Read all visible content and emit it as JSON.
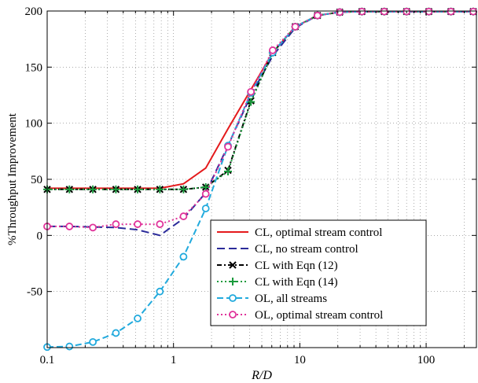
{
  "chart_data": {
    "type": "line",
    "xscale": "log",
    "xlim": [
      0.1,
      250
    ],
    "ylim": [
      -100,
      200
    ],
    "xlabel": "R/D",
    "ylabel": "%Throughput Improvement",
    "xticks": [
      0.1,
      1,
      10,
      100
    ],
    "xtick_labels": [
      "0.1",
      "1",
      "10",
      "100"
    ],
    "yticks": [
      -100,
      -50,
      0,
      50,
      100,
      150,
      200
    ],
    "ytick_labels": [
      "",
      "-50",
      "0",
      "50",
      "100",
      "150",
      "200"
    ],
    "grid": true,
    "legend_position": "lower-right",
    "x": [
      0.1,
      0.15,
      0.23,
      0.35,
      0.52,
      0.78,
      1.2,
      1.8,
      2.7,
      4.1,
      6.1,
      9.2,
      13.8,
      20.7,
      31,
      46.6,
      70,
      105,
      157,
      236
    ],
    "series": [
      {
        "name": "CL, optimal stream control",
        "color": "#e41a1c",
        "dash": "",
        "marker": "none",
        "values": [
          42,
          42,
          42,
          42,
          42,
          42,
          46,
          60,
          95,
          130,
          163,
          186,
          196,
          199,
          199.5,
          199.5,
          199.5,
          199.5,
          199.5,
          199.5
        ]
      },
      {
        "name": "CL, no stream control",
        "color": "#2b2b9a",
        "dash": "10,5",
        "marker": "none",
        "values": [
          8,
          8,
          7.5,
          7,
          5,
          0,
          15,
          38,
          80,
          125,
          160,
          185,
          196,
          199,
          199.5,
          199.5,
          199.5,
          199.5,
          199.5,
          199.5
        ]
      },
      {
        "name": "CL with Eqn (12)",
        "color": "#000000",
        "dash": "6,3,2,3",
        "marker": "x",
        "values": [
          41,
          41,
          41,
          41,
          41,
          41,
          41,
          43,
          58,
          120,
          163,
          186,
          196,
          199,
          199.5,
          199.5,
          199.5,
          199.5,
          199.5,
          199.5
        ]
      },
      {
        "name": "CL with Eqn (14)",
        "color": "#1a9a3c",
        "dash": "2,3",
        "marker": "+",
        "values": [
          41,
          41,
          41,
          41,
          41,
          41,
          41,
          43,
          57,
          119,
          163,
          186,
          196,
          199,
          199.5,
          199.5,
          199.5,
          199.5,
          199.5,
          199.5
        ]
      },
      {
        "name": "OL, all streams",
        "color": "#22aadd",
        "dash": "8,4",
        "marker": "o",
        "values": [
          -99.5,
          -99,
          -95,
          -87,
          -74,
          -50,
          -19,
          24,
          80,
          127,
          163,
          186,
          196,
          199,
          199.5,
          199.5,
          199.5,
          199.5,
          199.5,
          199.5
        ]
      },
      {
        "name": "OL, optimal stream control",
        "color": "#e0339a",
        "dash": "2,3",
        "marker": "o",
        "values": [
          8,
          8,
          7,
          10,
          10,
          10,
          17,
          37,
          79,
          128,
          165,
          186,
          196,
          199,
          199.5,
          199.5,
          199.5,
          199.5,
          199.5,
          199.5
        ]
      }
    ]
  }
}
